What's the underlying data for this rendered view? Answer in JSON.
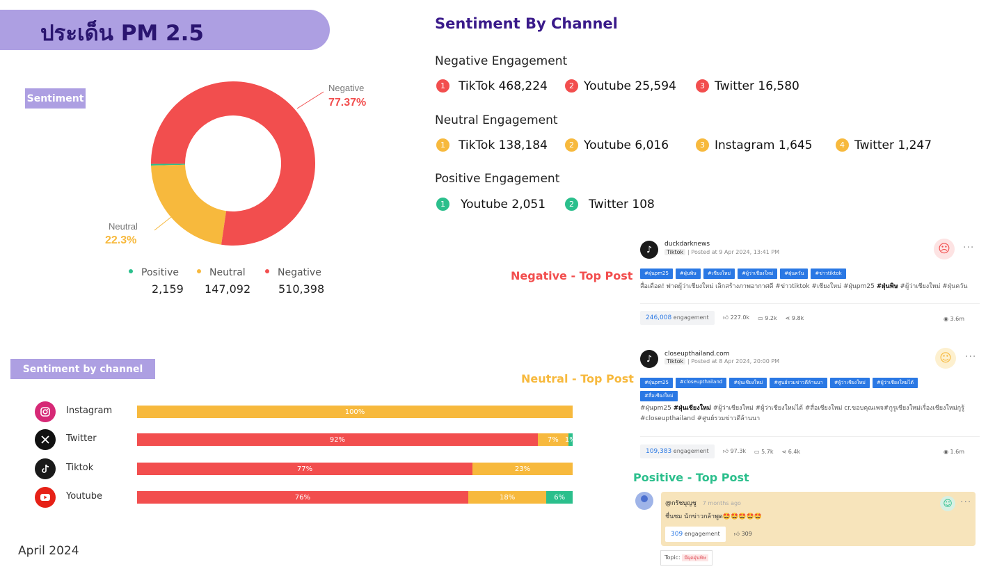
{
  "title": "ประเด็น PM 2.5",
  "sentiment_tag": "Sentiment",
  "channel_tag": "Sentiment by channel",
  "date": "April 2024",
  "colors": {
    "positive": "#2bbf8c",
    "neutral": "#f7b93d",
    "negative": "#f24e4e",
    "title_purple": "#ad9fe2",
    "heading_purple": "#3a1a8a"
  },
  "donut_labels": {
    "negative_name": "Negative",
    "negative_pct": "77.37%",
    "neutral_name": "Neutral",
    "neutral_pct": "22.3%"
  },
  "legend": [
    {
      "name": "Positive",
      "value": "2,159"
    },
    {
      "name": "Neutral",
      "value": "147,092"
    },
    {
      "name": "Negative",
      "value": "510,398"
    }
  ],
  "chart_data": [
    {
      "type": "pie",
      "style": "donut",
      "categories": [
        "Positive",
        "Neutral",
        "Negative"
      ],
      "values": [
        2159,
        147092,
        510398
      ],
      "labels": [
        "",
        "22.3%",
        "77.37%"
      ]
    },
    {
      "type": "bar",
      "orientation": "horizontal",
      "stacked": true,
      "categories": [
        "Instagram",
        "Twitter",
        "Tiktok",
        "Youtube"
      ],
      "series": [
        {
          "name": "Negative",
          "values": [
            0,
            92,
            77,
            76
          ],
          "labels": [
            "",
            "92%",
            "77%",
            "76%"
          ]
        },
        {
          "name": "Neutral",
          "values": [
            100,
            7,
            23,
            18
          ],
          "labels": [
            "100%",
            "7%",
            "23%",
            "18%"
          ]
        },
        {
          "name": "Positive",
          "values": [
            0,
            1,
            0,
            6
          ],
          "labels": [
            "",
            "1%",
            "",
            "6%"
          ]
        }
      ]
    }
  ],
  "sentiment_by_channel": {
    "title": "Sentiment By Channel",
    "negative": {
      "heading": "Negative Engagement",
      "items": [
        {
          "rank": "1",
          "text": "TikTok 468,224"
        },
        {
          "rank": "2",
          "text": "Youtube 25,594"
        },
        {
          "rank": "3",
          "text": "Twitter 16,580"
        }
      ]
    },
    "neutral": {
      "heading": "Neutral Engagement",
      "items": [
        {
          "rank": "1",
          "text": "TikTok 138,184"
        },
        {
          "rank": "2",
          "text": "Youtube 6,016"
        },
        {
          "rank": "3",
          "text": "Instagram 1,645"
        },
        {
          "rank": "4",
          "text": "Twitter 1,247"
        }
      ]
    },
    "positive": {
      "heading": "Positive Engagement",
      "items": [
        {
          "rank": "1",
          "text": "Youtube 2,051"
        },
        {
          "rank": "2",
          "text": "Twitter 108"
        }
      ]
    }
  },
  "channel_icons": [
    "instagram-icon",
    "x-twitter-icon",
    "tiktok-icon",
    "youtube-icon"
  ],
  "top_post_labels": {
    "negative": "Negative - Top Post",
    "neutral": "Neutral - Top Post",
    "positive": "Positive - Top Post"
  },
  "posts": {
    "negative": {
      "name": "duckdarknews",
      "source": "Tiktok",
      "posted": "| Posted at 9 Apr 2024, 13:41 PM",
      "tags": [
        "#ฝุ่นpm25",
        "#ฝุ่นพิษ",
        "#เชียงใหม่",
        "#ผู้ว่าเชียงใหม่",
        "#ฝุ่นควัน",
        "#ข่าวtiktok"
      ],
      "text_before": "สื่อเดือด! ฟาดผู้ว่าเชียงใหม่ เลิกสร้างภาพอากาศดี #ข่าวtiktok #เชียงใหม่ #ฝุ่นpm25 ",
      "text_bold": "#ฝุ่นพิษ",
      "text_after": " #ผู้ว่าเชียงใหม่ #ฝุ่นควัน",
      "engagement": "246,008",
      "engagement_word": "engagement",
      "likes": "227.0k",
      "comments": "9.2k",
      "shares": "9.8k",
      "views": "3.6m"
    },
    "neutral": {
      "name": "closeupthailand.com",
      "source": "Tiktok",
      "posted": "| Posted at 8 Apr 2024, 20:00 PM",
      "tags": [
        "#ฝุ่นpm25",
        "#closeupthailand",
        "#ฝุ่นเชียงใหม่",
        "#ศูนย์รวมข่าวดีล้านนา",
        "#ผู้ว่าเชียงใหม่",
        "#ผู้ว่าเชียงใหม่ได้",
        "#สื่อเชียงใหม่"
      ],
      "text_before": "#ฝุ่นpm25 ",
      "text_bold": "#ฝุ่นเชียงใหม่",
      "text_after": " #ผู้ว่าเชียงใหม่ #ผู้ว่าเชียงใหม่ได้ #สื่อเชียงใหม่ cr.ขอบคุณเพจ#กูรูเชียงใหม่เรื่องเชียงใหม่กูรู้ #closeupthailand #ศูนย์รวมข่าวดีล้านนา",
      "engagement": "109,383",
      "engagement_word": "engagement",
      "likes": "97.3k",
      "comments": "5.7k",
      "shares": "6.4k",
      "views": "1.6m"
    },
    "positive": {
      "name": "@กรัชบุญชู",
      "time": "7 months ago",
      "text": "ชื่นชม นักข่าวกล้าพูด🤩🤩🤩🤩🤩",
      "engagement": "309",
      "engagement_word": "engagement",
      "likes": "309",
      "topic_label": "Topic:",
      "topic": "มีผุดฝุ่นพิษ"
    }
  }
}
